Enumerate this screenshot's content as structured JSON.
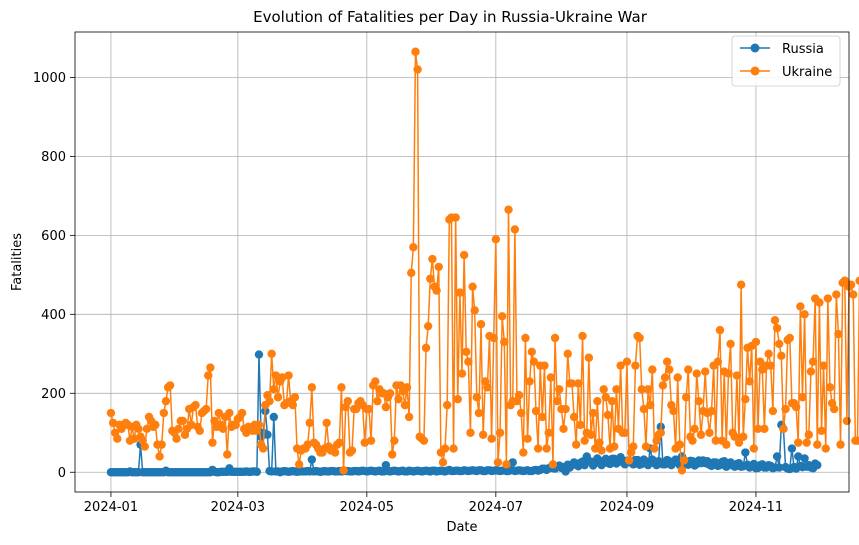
{
  "chart_data": {
    "type": "line",
    "title": "Evolution of Fatalities per Day in Russia-Ukraine War",
    "xlabel": "Date",
    "ylabel": "Fatalities",
    "x_range": [
      "2023-12-15",
      "2024-12-15"
    ],
    "ylim": [
      -50,
      1115
    ],
    "grid": true,
    "legend_position": "top-right",
    "x_ticks": [
      "2024-01",
      "2024-03",
      "2024-05",
      "2024-07",
      "2024-09",
      "2024-11"
    ],
    "y_ticks": [
      0,
      200,
      400,
      600,
      800,
      1000
    ],
    "x_tick_dates": [
      "2024-01-01",
      "2024-03-01",
      "2024-05-01",
      "2024-07-01",
      "2024-09-01",
      "2024-11-01"
    ],
    "start_date": "2024-01-01",
    "end_date": "2024-11-30",
    "series": [
      {
        "name": "Russia",
        "color": "#1f77b4",
        "baseline": [
          [
            0,
            0
          ],
          [
            40,
            0
          ],
          [
            60,
            1
          ],
          [
            70,
            2
          ],
          [
            100,
            2
          ],
          [
            120,
            3
          ],
          [
            150,
            3
          ],
          [
            170,
            4
          ],
          [
            200,
            4
          ],
          [
            220,
            20
          ],
          [
            240,
            30
          ],
          [
            250,
            25
          ],
          [
            270,
            25
          ],
          [
            290,
            20
          ],
          [
            310,
            15
          ],
          [
            320,
            10
          ],
          [
            334,
            15
          ]
        ],
        "spikes": [
          [
            9,
            2
          ],
          [
            14,
            70
          ],
          [
            26,
            4
          ],
          [
            48,
            6
          ],
          [
            56,
            10
          ],
          [
            70,
            298
          ],
          [
            71,
            90
          ],
          [
            72,
            100
          ],
          [
            73,
            155
          ],
          [
            74,
            95
          ],
          [
            77,
            140
          ],
          [
            80,
            0
          ],
          [
            95,
            32
          ],
          [
            110,
            3
          ],
          [
            130,
            18
          ],
          [
            160,
            6
          ],
          [
            190,
            25
          ],
          [
            215,
            2
          ],
          [
            225,
            40
          ],
          [
            230,
            35
          ],
          [
            245,
            30
          ],
          [
            255,
            60
          ],
          [
            260,
            115
          ],
          [
            270,
            40
          ],
          [
            280,
            30
          ],
          [
            290,
            28
          ],
          [
            300,
            50
          ],
          [
            305,
            10
          ],
          [
            315,
            40
          ],
          [
            317,
            120
          ],
          [
            318,
            110
          ],
          [
            322,
            60
          ],
          [
            325,
            40
          ],
          [
            328,
            35
          ],
          [
            333,
            22
          ]
        ]
      },
      {
        "name": "Ukraine",
        "color": "#ff7f0e",
        "values": [
          150,
          125,
          100,
          85,
          120,
          110,
          120,
          125,
          120,
          80,
          115,
          85,
          120,
          110,
          90,
          80,
          65,
          110,
          140,
          130,
          115,
          120,
          70,
          40,
          70,
          150,
          180,
          215,
          220,
          105,
          100,
          85,
          110,
          130,
          130,
          95,
          110,
          160,
          120,
          165,
          170,
          115,
          105,
          150,
          155,
          160,
          245,
          265,
          75,
          130,
          115,
          150,
          120,
          110,
          140,
          45,
          150,
          115,
          120,
          120,
          135,
          140,
          150,
          110,
          100,
          115,
          110,
          105,
          120,
          105,
          120,
          70,
          60,
          170,
          195,
          180,
          300,
          210,
          245,
          190,
          230,
          240,
          170,
          175,
          245,
          180,
          170,
          190,
          60,
          20,
          55,
          60,
          60,
          70,
          125,
          215,
          75,
          70,
          60,
          50,
          50,
          60,
          125,
          65,
          55,
          60,
          50,
          70,
          75,
          215,
          5,
          165,
          180,
          50,
          55,
          160,
          160,
          175,
          180,
          170,
          75,
          160,
          160,
          80,
          220,
          230,
          180,
          210,
          200,
          200,
          165,
          190,
          200,
          45,
          80,
          220,
          185,
          220,
          205,
          170,
          215,
          140,
          505,
          570,
          1065,
          1020,
          90,
          85,
          80,
          315,
          370,
          490,
          540,
          470,
          460,
          520,
          50,
          25,
          60,
          170,
          640,
          645,
          60,
          645,
          185,
          455,
          250,
          550,
          305,
          280,
          100,
          470,
          410,
          190,
          150,
          375,
          95,
          230,
          215,
          345,
          85,
          340,
          590,
          25,
          100,
          395,
          330,
          20,
          665,
          170,
          180,
          615,
          180,
          195,
          150,
          50,
          340,
          85,
          230,
          305,
          280,
          155,
          60,
          270,
          140,
          270,
          60,
          100,
          240,
          20,
          340,
          180,
          210,
          160,
          110,
          160,
          300,
          225,
          225,
          140,
          70,
          225,
          120,
          345,
          80,
          100,
          290,
          95,
          150,
          60,
          180,
          75,
          55,
          210,
          190,
          145,
          60,
          180,
          65,
          210,
          110,
          270,
          100,
          100,
          280,
          30,
          50,
          65,
          270,
          345,
          340,
          210,
          160,
          65,
          210,
          170,
          260,
          60,
          80,
          95,
          100,
          220,
          240,
          280,
          260,
          170,
          155,
          60,
          240,
          70,
          5,
          30,
          190,
          260,
          90,
          80,
          110,
          250,
          180,
          95,
          155,
          255,
          150,
          100,
          155,
          270,
          80,
          280,
          360,
          80,
          255,
          70,
          250,
          325,
          100,
          90,
          245,
          75,
          475,
          90,
          185,
          315,
          230,
          320,
          60,
          330,
          110,
          280,
          260,
          110,
          270,
          300,
          270,
          155,
          385,
          365,
          325,
          295,
          110,
          160,
          335,
          340,
          175,
          175,
          165,
          75,
          420,
          190,
          400,
          75,
          95,
          255,
          280,
          440,
          70,
          430,
          105,
          270,
          60,
          440,
          215,
          175,
          160,
          450,
          350,
          70,
          480,
          485,
          130,
          470,
          475,
          450,
          80,
          80,
          485
        ]
      }
    ]
  }
}
